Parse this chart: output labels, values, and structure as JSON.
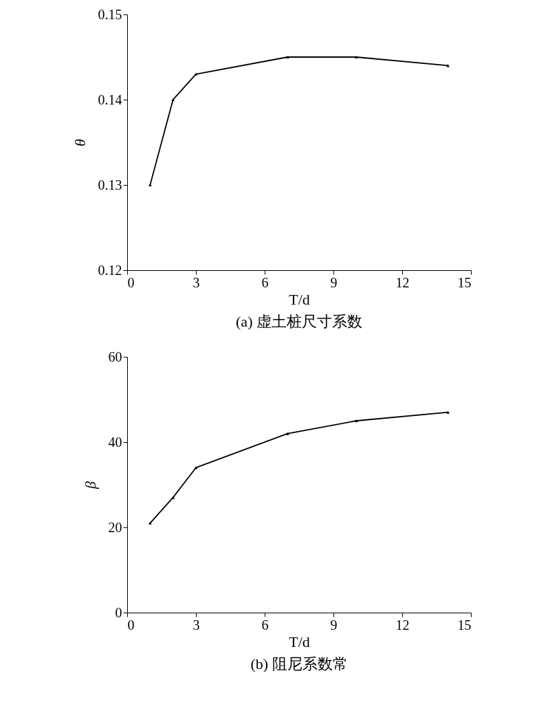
{
  "chart_data": [
    {
      "type": "line",
      "title": "(a) 虚土桩尺寸系数",
      "xlabel": "T/d",
      "ylabel": "θ",
      "x": [
        1,
        2,
        3,
        7,
        10,
        14
      ],
      "series": [
        {
          "color": "#000000",
          "values": [
            0.13,
            0.14,
            0.143,
            0.145,
            0.145,
            0.144
          ]
        }
      ],
      "xlim": [
        0,
        15
      ],
      "xticks": [
        0,
        3,
        6,
        9,
        12,
        15
      ],
      "ylim": [
        0.12,
        0.15
      ],
      "yticks": [
        {
          "value": 0.12,
          "label": "0.12"
        },
        {
          "value": 0.13,
          "label": "0.13"
        },
        {
          "value": 0.14,
          "label": "0.14"
        },
        {
          "value": 0.15,
          "label": "0.15"
        }
      ],
      "marker": "triangle",
      "line_style": "solid"
    },
    {
      "type": "line",
      "title": "(b) 阻尼系数常",
      "xlabel": "T/d",
      "ylabel": "β",
      "x": [
        1,
        2,
        3,
        7,
        10,
        14
      ],
      "series": [
        {
          "color": "#000000",
          "values": [
            21,
            27,
            34,
            42,
            45,
            47
          ]
        }
      ],
      "xlim": [
        0,
        15
      ],
      "xticks": [
        0,
        3,
        6,
        9,
        12,
        15
      ],
      "ylim": [
        0,
        60
      ],
      "yticks": [
        0,
        20,
        40,
        60
      ],
      "marker": "triangle",
      "line_style": "solid"
    }
  ]
}
